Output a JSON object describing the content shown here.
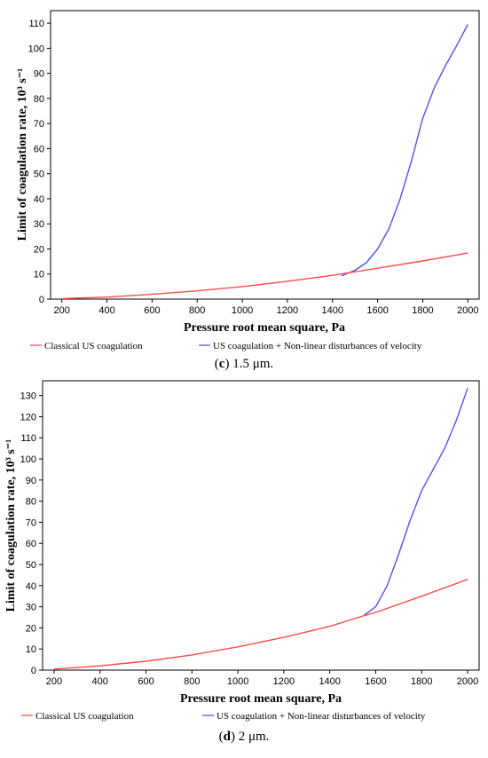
{
  "chart_data": [
    {
      "type": "line",
      "xlabel": "Pressure root mean square, Pa",
      "ylabel": "Limit of coagulation rate, 10³ s⁻¹",
      "xlim": [
        150,
        2050
      ],
      "ylim": [
        0,
        115
      ],
      "xticks": [
        200,
        400,
        600,
        800,
        1000,
        1200,
        1400,
        1600,
        1800,
        2000
      ],
      "yticks": [
        0,
        10,
        20,
        30,
        40,
        50,
        60,
        70,
        80,
        90,
        100,
        110
      ],
      "grid": false,
      "legend_position": "bottom",
      "series": [
        {
          "name": "Classical US coagulation",
          "color": "#ff4b4b",
          "x": [
            200,
            400,
            600,
            800,
            1000,
            1200,
            1400,
            1600,
            1800,
            2000
          ],
          "y": [
            0.2,
            0.8,
            1.9,
            3.3,
            5.0,
            7.1,
            9.5,
            12.3,
            15.2,
            18.4
          ]
        },
        {
          "name": "US coagulation + Non-linear disturbances of velocity",
          "color": "#5050ff",
          "x": [
            1440,
            1500,
            1550,
            1600,
            1650,
            1700,
            1750,
            1800,
            1850,
            1900,
            1950,
            2000
          ],
          "y": [
            9.3,
            11.5,
            14.5,
            20.0,
            28.0,
            40.0,
            55.0,
            72.0,
            84.0,
            93.0,
            101.0,
            109.5
          ]
        }
      ],
      "caption_label": "c",
      "caption_text": "1.5 μm."
    },
    {
      "type": "line",
      "xlabel": "Pressure root mean square, Pa",
      "ylabel": "Limit of coagulation rate, 10³ s⁻¹",
      "xlim": [
        150,
        2050
      ],
      "ylim": [
        0,
        137
      ],
      "xticks": [
        200,
        400,
        600,
        800,
        1000,
        1200,
        1400,
        1600,
        1800,
        2000
      ],
      "yticks": [
        0,
        10,
        20,
        30,
        40,
        50,
        60,
        70,
        80,
        90,
        100,
        110,
        120,
        130
      ],
      "grid": false,
      "legend_position": "bottom",
      "series": [
        {
          "name": "Classical US coagulation",
          "color": "#ff4b4b",
          "x": [
            200,
            400,
            600,
            800,
            1000,
            1200,
            1400,
            1550,
            1600,
            1800,
            2000
          ],
          "y": [
            0.5,
            2.0,
            4.2,
            7.2,
            11.0,
            15.5,
            20.7,
            25.8,
            27.3,
            35.0,
            43.0
          ]
        },
        {
          "name": "US coagulation + Non-linear disturbances of velocity",
          "color": "#5050ff",
          "x": [
            1550,
            1600,
            1650,
            1700,
            1750,
            1800,
            1850,
            1900,
            1950,
            2000
          ],
          "y": [
            26.0,
            30.0,
            40.0,
            55.0,
            71.0,
            85.0,
            95.0,
            105.0,
            118.0,
            133.5
          ]
        }
      ],
      "caption_label": "d",
      "caption_text": "2 μm."
    }
  ]
}
